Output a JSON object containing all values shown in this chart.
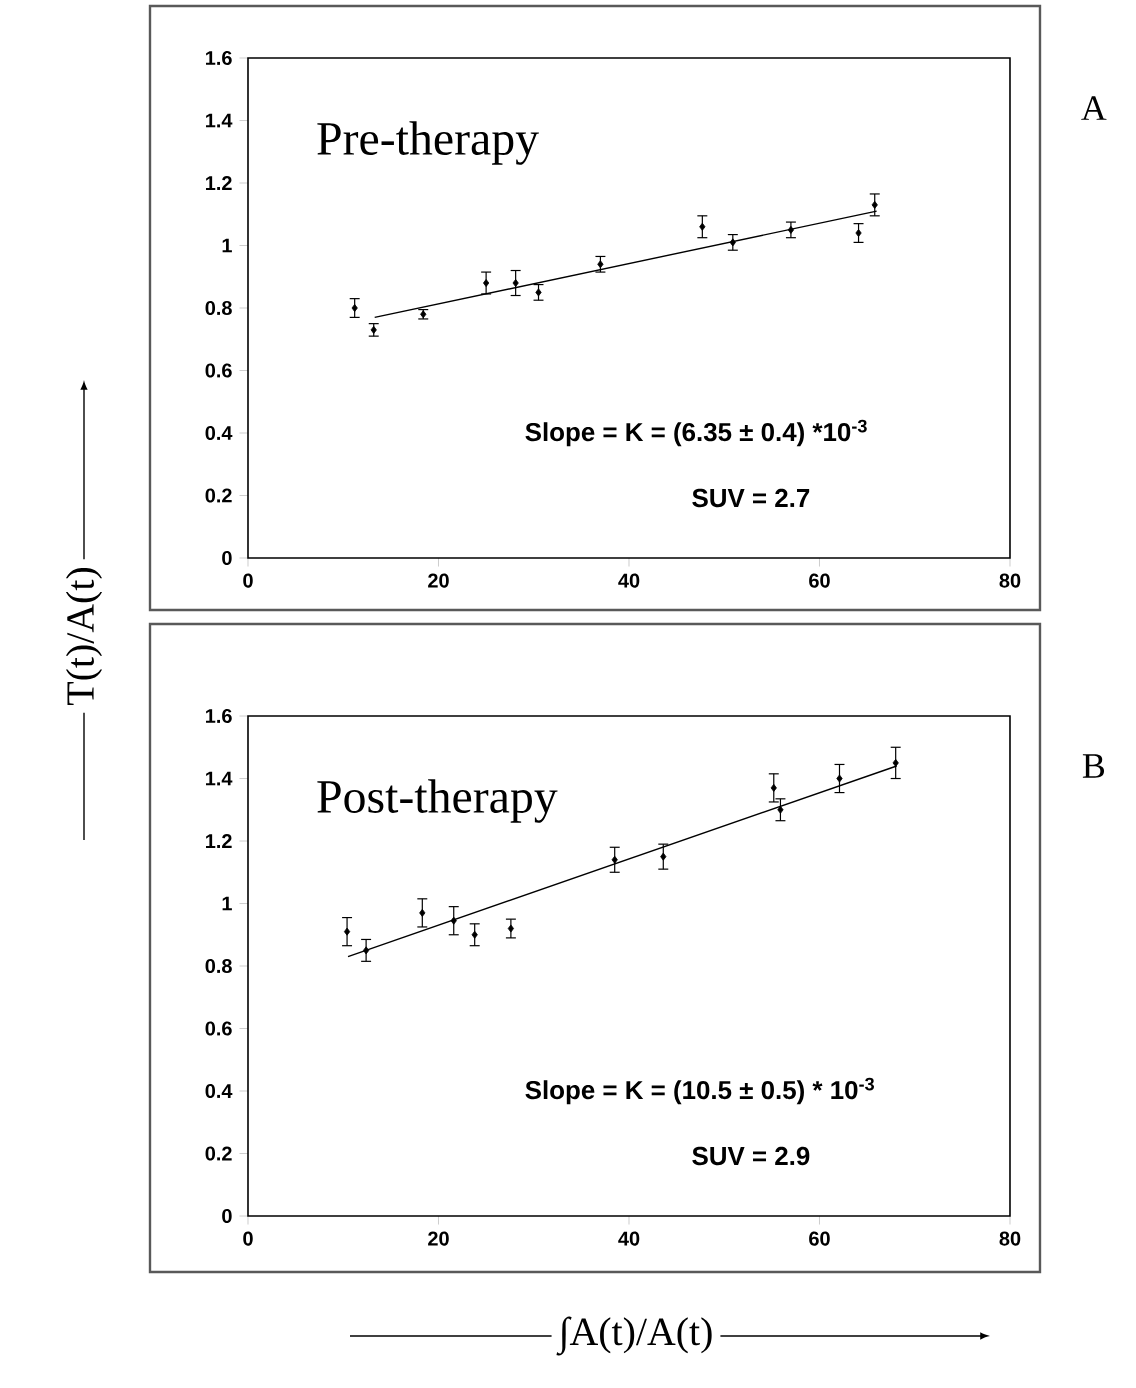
{
  "chart_data": [
    {
      "type": "scatter",
      "title": "Pre-therapy",
      "ylabel": "T(t)/A(t)",
      "xlim": [
        0,
        80
      ],
      "ylim": [
        0,
        1.6
      ],
      "xticks": [
        0,
        20,
        40,
        60,
        80
      ],
      "yticks": [
        0,
        0.2,
        0.4,
        0.6,
        0.8,
        1,
        1.2,
        1.4,
        1.6
      ],
      "marker": "diamond",
      "annotations": [
        "Slope = K = (6.35 ± 0.4) *10$^{-3}$",
        "SUV = 2.7",
        "A"
      ],
      "series": [
        {
          "color": "#000000",
          "x": [
            11.2,
            13.2,
            18.4,
            25.0,
            28.1,
            30.5,
            37.0,
            47.7,
            50.9,
            57.0,
            64.1,
            65.8
          ],
          "values": [
            0.8,
            0.73,
            0.78,
            0.88,
            0.88,
            0.85,
            0.94,
            1.06,
            1.01,
            1.05,
            1.04,
            1.13
          ],
          "errors": [
            0.03,
            0.02,
            0.015,
            0.035,
            0.04,
            0.025,
            0.025,
            0.035,
            0.025,
            0.025,
            0.03,
            0.035
          ]
        },
        {
          "type": "line",
          "color": "#000000",
          "marker": "none",
          "x": [
            13.3,
            66
          ],
          "values": [
            0.77,
            1.11
          ]
        }
      ]
    },
    {
      "type": "scatter",
      "title": "Post-therapy",
      "xlabel": "∫A(t)/A(t)",
      "xlim": [
        0,
        80
      ],
      "ylim": [
        0,
        1.6
      ],
      "xticks": [
        0,
        20,
        40,
        60,
        80
      ],
      "yticks": [
        0,
        0.2,
        0.4,
        0.6,
        0.8,
        1,
        1.2,
        1.4,
        1.6
      ],
      "marker": "diamond",
      "annotations": [
        "Slope = K = (10.5 ± 0.5) * 10$^{-3}$",
        "SUV = 2.9",
        "B"
      ],
      "series": [
        {
          "color": "#000000",
          "x": [
            10.4,
            12.4,
            18.3,
            21.6,
            23.8,
            27.6,
            38.5,
            43.6,
            55.2,
            55.9,
            62.1,
            68.0
          ],
          "values": [
            0.91,
            0.85,
            0.97,
            0.945,
            0.9,
            0.92,
            1.14,
            1.15,
            1.37,
            1.3,
            1.4,
            1.45
          ],
          "errors": [
            0.045,
            0.035,
            0.045,
            0.045,
            0.035,
            0.03,
            0.04,
            0.04,
            0.045,
            0.035,
            0.045,
            0.05
          ]
        },
        {
          "type": "line",
          "color": "#000000",
          "marker": "none",
          "x": [
            10.5,
            68.1
          ],
          "values": [
            0.83,
            1.44
          ]
        }
      ]
    }
  ]
}
